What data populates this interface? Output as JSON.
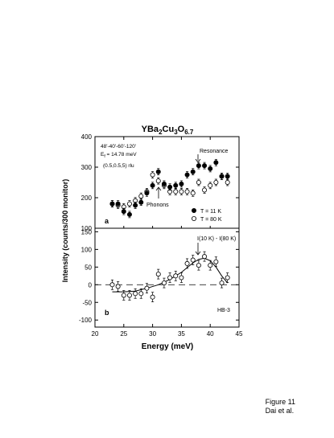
{
  "caption": {
    "line1": "Figure 11",
    "line2": "Dai et al."
  },
  "chart_data": [
    {
      "panel": "a",
      "type": "scatter",
      "title_main": "YBa",
      "title_sub1": "2",
      "title_mid": "Cu",
      "title_sub2": "3",
      "title_end": "O",
      "title_sub3": "6.7",
      "ylabel": "Intensity (counts/300 monitor)",
      "xlim": [
        20,
        45
      ],
      "ylim": [
        100,
        400
      ],
      "yticks": [
        100,
        200,
        300,
        400
      ],
      "info_lines": [
        "48'-40'-60'-120'",
        "E",
        "f",
        " = 14.78 meV",
        "(0.5,0.5,5) rlu"
      ],
      "annotations": {
        "resonance": "Resonance",
        "phonons": "Phonons",
        "panel_label": "a"
      },
      "legend": {
        "placement": "middle-right"
      },
      "series": [
        {
          "name": "T = 11 K",
          "marker": "filled",
          "x": [
            23,
            24,
            25,
            26,
            27,
            28,
            29,
            30,
            31,
            32,
            33,
            34,
            35,
            36,
            37,
            38,
            39,
            40,
            41,
            42,
            43
          ],
          "y": [
            180,
            180,
            155,
            145,
            175,
            185,
            215,
            240,
            285,
            245,
            235,
            240,
            245,
            275,
            285,
            305,
            305,
            295,
            315,
            270,
            270
          ]
        },
        {
          "name": "T = 80 K",
          "marker": "open",
          "x": [
            23,
            24,
            25,
            26,
            27,
            28,
            29,
            30,
            31,
            32,
            33,
            34,
            35,
            36,
            37,
            38,
            39,
            40,
            41,
            42,
            43
          ],
          "y": [
            180,
            175,
            170,
            180,
            190,
            205,
            220,
            275,
            255,
            240,
            220,
            220,
            220,
            220,
            215,
            250,
            225,
            240,
            250,
            270,
            250
          ]
        }
      ]
    },
    {
      "panel": "b",
      "type": "scatter",
      "xlabel": "Energy (meV)",
      "xlim": [
        20,
        45
      ],
      "ylim": [
        -120,
        160
      ],
      "xticks": [
        20,
        25,
        30,
        35,
        40,
        45
      ],
      "yticks": [
        -100,
        -50,
        0,
        50,
        100,
        150
      ],
      "annotations": {
        "difference": "I(10 K) - I(80 K)",
        "instrument": "HB-3",
        "panel_label": "b"
      },
      "series": [
        {
          "name": "I(10 K) - I(80 K)",
          "marker": "open",
          "x": [
            23,
            24,
            25,
            26,
            27,
            28,
            29,
            30,
            31,
            32,
            33,
            34,
            35,
            36,
            37,
            38,
            39,
            40,
            41,
            42,
            43
          ],
          "y": [
            0,
            -5,
            -30,
            -30,
            -25,
            -25,
            -10,
            -35,
            30,
            5,
            20,
            25,
            20,
            60,
            70,
            55,
            80,
            55,
            65,
            5,
            20
          ]
        }
      ],
      "fit_curve": {
        "x": [
          23,
          25,
          27,
          29,
          31,
          33,
          35,
          37,
          38,
          39,
          40,
          41,
          42,
          43
        ],
        "y": [
          -20,
          -20,
          -18,
          -10,
          0,
          15,
          35,
          62,
          72,
          75,
          68,
          50,
          25,
          5
        ]
      }
    }
  ]
}
